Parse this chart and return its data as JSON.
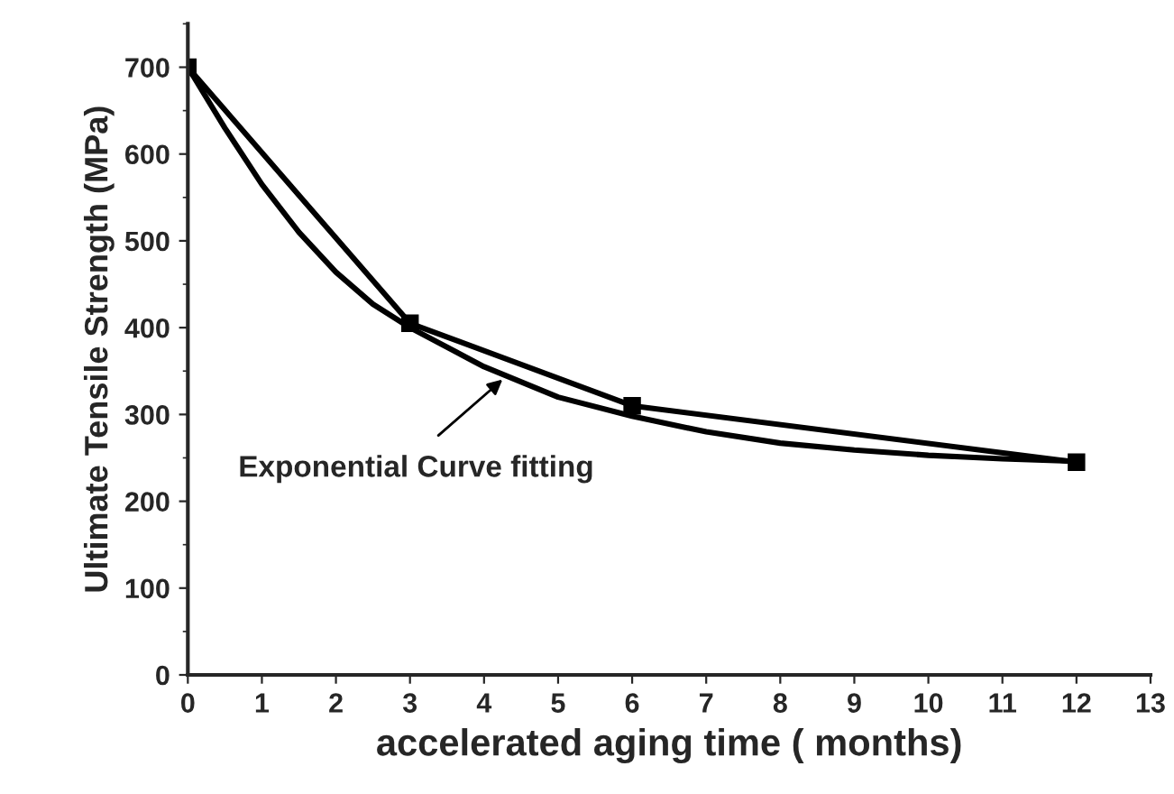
{
  "chart_data": {
    "type": "line",
    "xlabel": "accelerated aging time ( months)",
    "ylabel": "Ultimate Tensile Strength (MPa)",
    "series": [
      {
        "type": "line",
        "color": "#000000",
        "marker": "square",
        "x": [
          0,
          3,
          6,
          12
        ],
        "values": [
          700,
          405,
          310,
          245
        ]
      },
      {
        "type": "line",
        "color": "#000000",
        "marker": "none",
        "x": [
          0,
          0.5,
          1,
          1.5,
          2,
          2.5,
          3,
          4,
          5,
          6,
          7,
          8,
          9,
          10,
          11,
          12
        ],
        "values": [
          700,
          630,
          565,
          510,
          464,
          427,
          400,
          355,
          320,
          298,
          280,
          267,
          259,
          253,
          249,
          246
        ]
      }
    ],
    "annotations": [
      {
        "text": "Exponential Curve fitting",
        "x": 4.3,
        "y": 344
      }
    ],
    "xlim": [
      0,
      13
    ],
    "xticks": [
      0,
      1,
      2,
      3,
      4,
      5,
      6,
      7,
      8,
      9,
      10,
      11,
      12,
      13
    ],
    "ylim": [
      0,
      750
    ],
    "yticks": [
      0,
      100,
      200,
      300,
      400,
      500,
      600,
      700
    ],
    "grid": false,
    "legend": false
  }
}
